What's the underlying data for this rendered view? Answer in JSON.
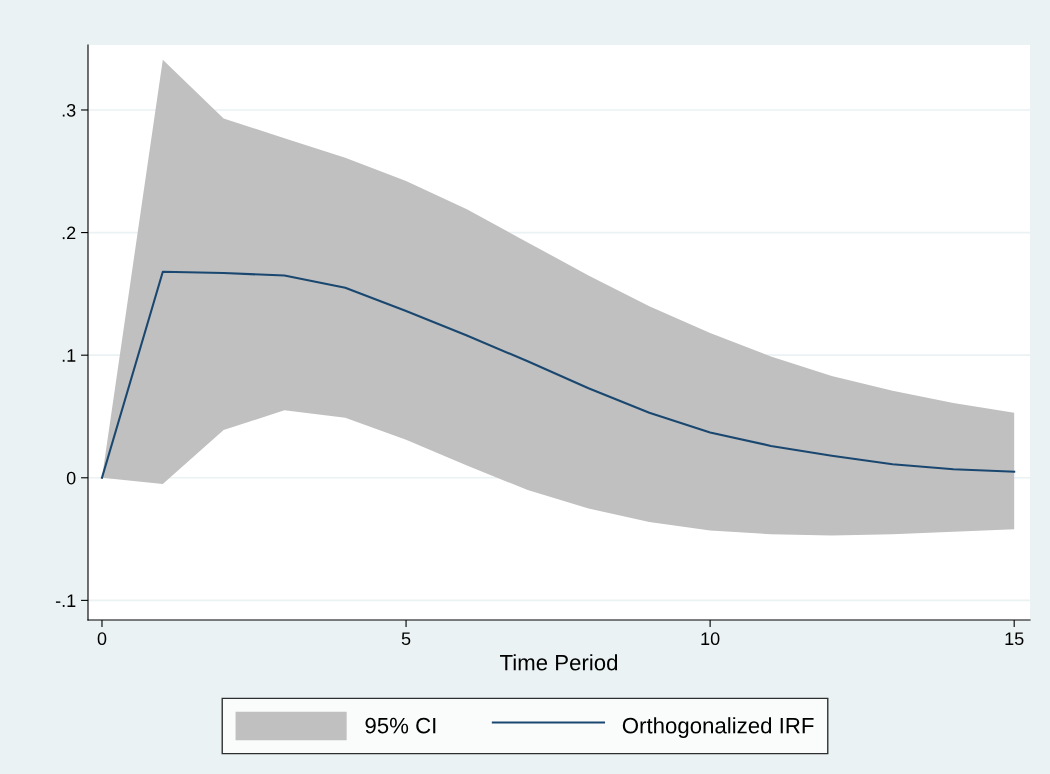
{
  "chart_data": {
    "type": "line",
    "xlabel": "Time Period",
    "x": [
      0,
      1,
      2,
      3,
      4,
      5,
      6,
      7,
      8,
      9,
      10,
      11,
      12,
      13,
      14,
      15
    ],
    "series": [
      {
        "name": "Orthogonalized IRF",
        "color": "#1a476f",
        "values": [
          0,
          0.168,
          0.167,
          0.165,
          0.155,
          0.136,
          0.116,
          0.095,
          0.073,
          0.053,
          0.037,
          0.026,
          0.018,
          0.011,
          0.007,
          0.005
        ],
        "lower": [
          0,
          -0.005,
          0.039,
          0.055,
          0.049,
          0.031,
          0.01,
          -0.01,
          -0.025,
          -0.036,
          -0.043,
          -0.046,
          -0.047,
          -0.046,
          -0.044,
          -0.042
        ],
        "upper": [
          0,
          0.341,
          0.293,
          0.277,
          0.261,
          0.242,
          0.219,
          0.192,
          0.165,
          0.14,
          0.118,
          0.099,
          0.083,
          0.071,
          0.061,
          0.053
        ]
      }
    ],
    "annotations": [
      "95% CI"
    ],
    "xlim": [
      -0.23,
      15.26
    ],
    "xticks": [
      0,
      5,
      10,
      15
    ],
    "ylim": [
      -0.116,
      0.353
    ],
    "yticks": [
      {
        "value": -0.1,
        "label": "-.1"
      },
      0,
      {
        "value": 0.1,
        "label": ".1"
      },
      {
        "value": 0.2,
        "label": ".2"
      },
      {
        "value": 0.3,
        "label": ".3"
      }
    ],
    "grid": "y",
    "legend": "bottom",
    "line_style": "solid",
    "marker": "none"
  }
}
